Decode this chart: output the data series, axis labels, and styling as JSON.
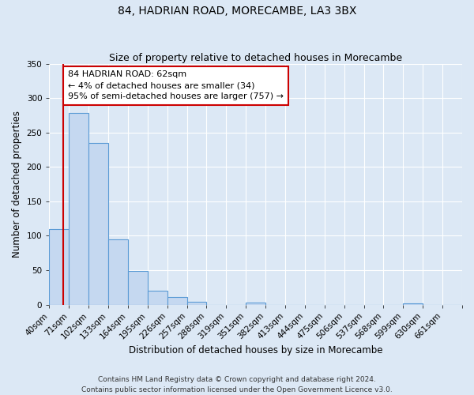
{
  "title": "84, HADRIAN ROAD, MORECAMBE, LA3 3BX",
  "subtitle": "Size of property relative to detached houses in Morecambe",
  "xlabel": "Distribution of detached houses by size in Morecambe",
  "ylabel": "Number of detached properties",
  "footer_line1": "Contains HM Land Registry data © Crown copyright and database right 2024.",
  "footer_line2": "Contains public sector information licensed under the Open Government Licence v3.0.",
  "bin_labels": [
    "40sqm",
    "71sqm",
    "102sqm",
    "133sqm",
    "164sqm",
    "195sqm",
    "226sqm",
    "257sqm",
    "288sqm",
    "319sqm",
    "351sqm",
    "382sqm",
    "413sqm",
    "444sqm",
    "475sqm",
    "506sqm",
    "537sqm",
    "568sqm",
    "599sqm",
    "630sqm",
    "661sqm"
  ],
  "bar_values": [
    110,
    278,
    235,
    95,
    49,
    20,
    11,
    4,
    0,
    0,
    3,
    0,
    0,
    0,
    0,
    0,
    0,
    0,
    2,
    0,
    0
  ],
  "bar_color": "#c5d8f0",
  "bar_edge_color": "#5b9bd5",
  "ylim": [
    0,
    350
  ],
  "yticks": [
    0,
    50,
    100,
    150,
    200,
    250,
    300,
    350
  ],
  "property_label": "84 HADRIAN ROAD: 62sqm",
  "annotation_line2": "← 4% of detached houses are smaller (34)",
  "annotation_line3": "95% of semi-detached houses are larger (757) →",
  "annotation_box_color": "#ffffff",
  "annotation_border_color": "#cc0000",
  "red_line_color": "#cc0000",
  "background_color": "#dce8f5",
  "plot_background_color": "#dce8f5",
  "grid_color": "#ffffff",
  "title_fontsize": 10,
  "subtitle_fontsize": 9,
  "axis_label_fontsize": 8.5,
  "tick_fontsize": 7.5,
  "annotation_fontsize": 8,
  "footer_fontsize": 6.5
}
